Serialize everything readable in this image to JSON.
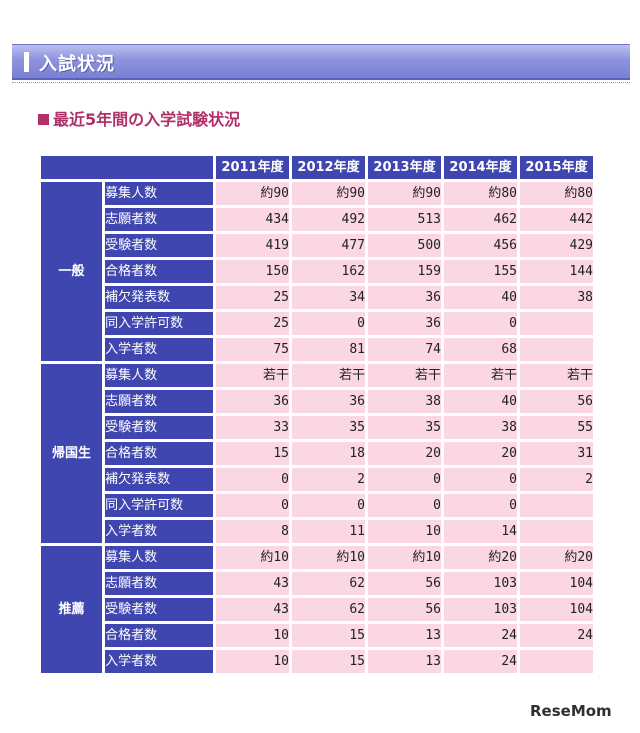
{
  "banner": {
    "title": "入試状況"
  },
  "subtitle": "最近5年間の入学試験状況",
  "years": [
    "2011年度",
    "2012年度",
    "2013年度",
    "2014年度",
    "2015年度"
  ],
  "groups": [
    {
      "name": "一般",
      "rows": [
        {
          "label": "募集人数",
          "values": [
            "約90",
            "約90",
            "約90",
            "約80",
            "約80"
          ]
        },
        {
          "label": "志願者数",
          "values": [
            "434",
            "492",
            "513",
            "462",
            "442"
          ]
        },
        {
          "label": "受験者数",
          "values": [
            "419",
            "477",
            "500",
            "456",
            "429"
          ]
        },
        {
          "label": "合格者数",
          "values": [
            "150",
            "162",
            "159",
            "155",
            "144"
          ]
        },
        {
          "label": "補欠発表数",
          "values": [
            "25",
            "34",
            "36",
            "40",
            "38"
          ]
        },
        {
          "label": "同入学許可数",
          "values": [
            "25",
            "0",
            "36",
            "0",
            ""
          ]
        },
        {
          "label": "入学者数",
          "values": [
            "75",
            "81",
            "74",
            "68",
            ""
          ]
        }
      ]
    },
    {
      "name": "帰国生",
      "rows": [
        {
          "label": "募集人数",
          "values": [
            "若干",
            "若干",
            "若干",
            "若干",
            "若干"
          ]
        },
        {
          "label": "志願者数",
          "values": [
            "36",
            "36",
            "38",
            "40",
            "56"
          ]
        },
        {
          "label": "受験者数",
          "values": [
            "33",
            "35",
            "35",
            "38",
            "55"
          ]
        },
        {
          "label": "合格者数",
          "values": [
            "15",
            "18",
            "20",
            "20",
            "31"
          ]
        },
        {
          "label": "補欠発表数",
          "values": [
            "0",
            "2",
            "0",
            "0",
            "2"
          ]
        },
        {
          "label": "同入学許可数",
          "values": [
            "0",
            "0",
            "0",
            "0",
            ""
          ]
        },
        {
          "label": "入学者数",
          "values": [
            "8",
            "11",
            "10",
            "14",
            ""
          ]
        }
      ]
    },
    {
      "name": "推薦",
      "rows": [
        {
          "label": "募集人数",
          "values": [
            "約10",
            "約10",
            "約10",
            "約20",
            "約20"
          ]
        },
        {
          "label": "志願者数",
          "values": [
            "43",
            "62",
            "56",
            "103",
            "104"
          ]
        },
        {
          "label": "受験者数",
          "values": [
            "43",
            "62",
            "56",
            "103",
            "104"
          ]
        },
        {
          "label": "合格者数",
          "values": [
            "10",
            "15",
            "13",
            "24",
            "24"
          ]
        },
        {
          "label": "入学者数",
          "values": [
            "10",
            "15",
            "13",
            "24",
            ""
          ]
        }
      ]
    }
  ],
  "watermark": "ReseMom"
}
